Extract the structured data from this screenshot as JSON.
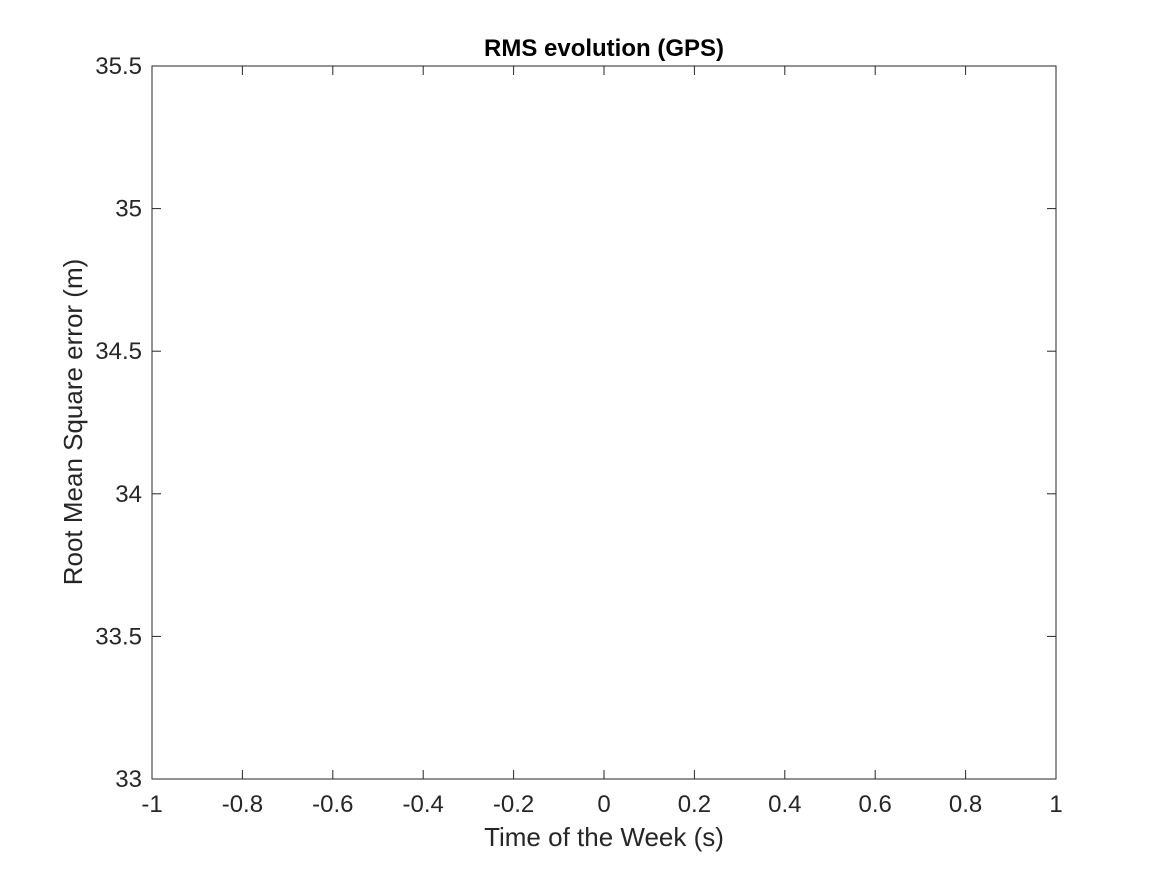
{
  "chart_data": {
    "type": "line",
    "title": "RMS evolution (GPS)",
    "xlabel": "Time of the Week (s)",
    "ylabel": "Root Mean Square error (m)",
    "xlim": [
      -1,
      1
    ],
    "ylim": [
      33,
      35.5
    ],
    "x_ticks": [
      -1,
      -0.8,
      -0.6,
      -0.4,
      -0.2,
      0,
      0.2,
      0.4,
      0.6,
      0.8,
      1
    ],
    "x_tick_labels": [
      "-1",
      "-0.8",
      "-0.6",
      "-0.4",
      "-0.2",
      "0",
      "0.2",
      "0.4",
      "0.6",
      "0.8",
      "1"
    ],
    "y_ticks": [
      33,
      33.5,
      34,
      34.5,
      35,
      35.5
    ],
    "y_tick_labels": [
      "33",
      "33.5",
      "34",
      "34.5",
      "35",
      "35.5"
    ],
    "series": [],
    "grid": false,
    "box": true,
    "colors": {
      "axis": "#262626",
      "title": "#000000",
      "background": "#ffffff"
    }
  }
}
